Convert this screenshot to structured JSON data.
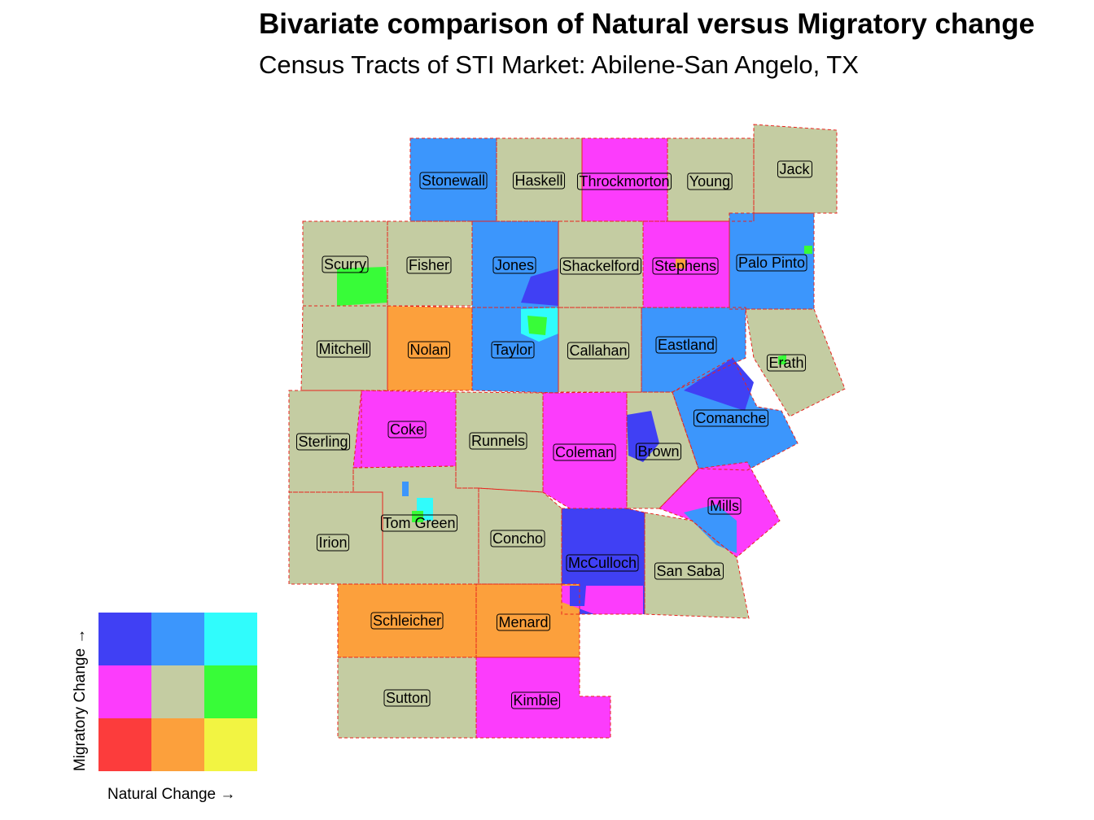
{
  "title": "Bivariate comparison of Natural versus Migratory change",
  "subtitle": "Census Tracts of STI Market: Abilene-San Angelo, TX",
  "legend": {
    "y_label": "Migratory Change →",
    "x_label": "Natural Change →",
    "grid": [
      [
        "#4040f4",
        "#3c96fc",
        "#30fcfc"
      ],
      [
        "#fc3cfc",
        "#c4cca2",
        "#38fc38"
      ],
      [
        "#fc3c3c",
        "#fca03c",
        "#f2f442"
      ]
    ]
  },
  "counties": [
    {
      "name": "Stonewall",
      "color": "#3c96fc"
    },
    {
      "name": "Haskell",
      "color": "#c4cca2"
    },
    {
      "name": "Throckmorton",
      "color": "#fc3cfc"
    },
    {
      "name": "Young",
      "color": "#c4cca2"
    },
    {
      "name": "Jack",
      "color": "#c4cca2"
    },
    {
      "name": "Scurry",
      "color": "#c4cca2"
    },
    {
      "name": "Fisher",
      "color": "#c4cca2"
    },
    {
      "name": "Jones",
      "color": "#3c96fc"
    },
    {
      "name": "Shackelford",
      "color": "#c4cca2"
    },
    {
      "name": "Stephens",
      "color": "#fc3cfc"
    },
    {
      "name": "Palo Pinto",
      "color": "#3c96fc"
    },
    {
      "name": "Mitchell",
      "color": "#c4cca2"
    },
    {
      "name": "Nolan",
      "color": "#fca03c"
    },
    {
      "name": "Taylor",
      "color": "#3c96fc"
    },
    {
      "name": "Callahan",
      "color": "#c4cca2"
    },
    {
      "name": "Eastland",
      "color": "#3c96fc"
    },
    {
      "name": "Erath",
      "color": "#c4cca2"
    },
    {
      "name": "Sterling",
      "color": "#c4cca2"
    },
    {
      "name": "Coke",
      "color": "#fc3cfc"
    },
    {
      "name": "Runnels",
      "color": "#c4cca2"
    },
    {
      "name": "Coleman",
      "color": "#fc3cfc"
    },
    {
      "name": "Brown",
      "color": "#c4cca2"
    },
    {
      "name": "Comanche",
      "color": "#3c96fc"
    },
    {
      "name": "Mills",
      "color": "#fc3cfc"
    },
    {
      "name": "Irion",
      "color": "#c4cca2"
    },
    {
      "name": "Tom Green",
      "color": "#c4cca2"
    },
    {
      "name": "Concho",
      "color": "#c4cca2"
    },
    {
      "name": "McCulloch",
      "color": "#4040f4"
    },
    {
      "name": "San Saba",
      "color": "#c4cca2"
    },
    {
      "name": "Schleicher",
      "color": "#fca03c"
    },
    {
      "name": "Menard",
      "color": "#fca03c"
    },
    {
      "name": "Sutton",
      "color": "#c4cca2"
    },
    {
      "name": "Kimble",
      "color": "#fc3cfc"
    }
  ]
}
